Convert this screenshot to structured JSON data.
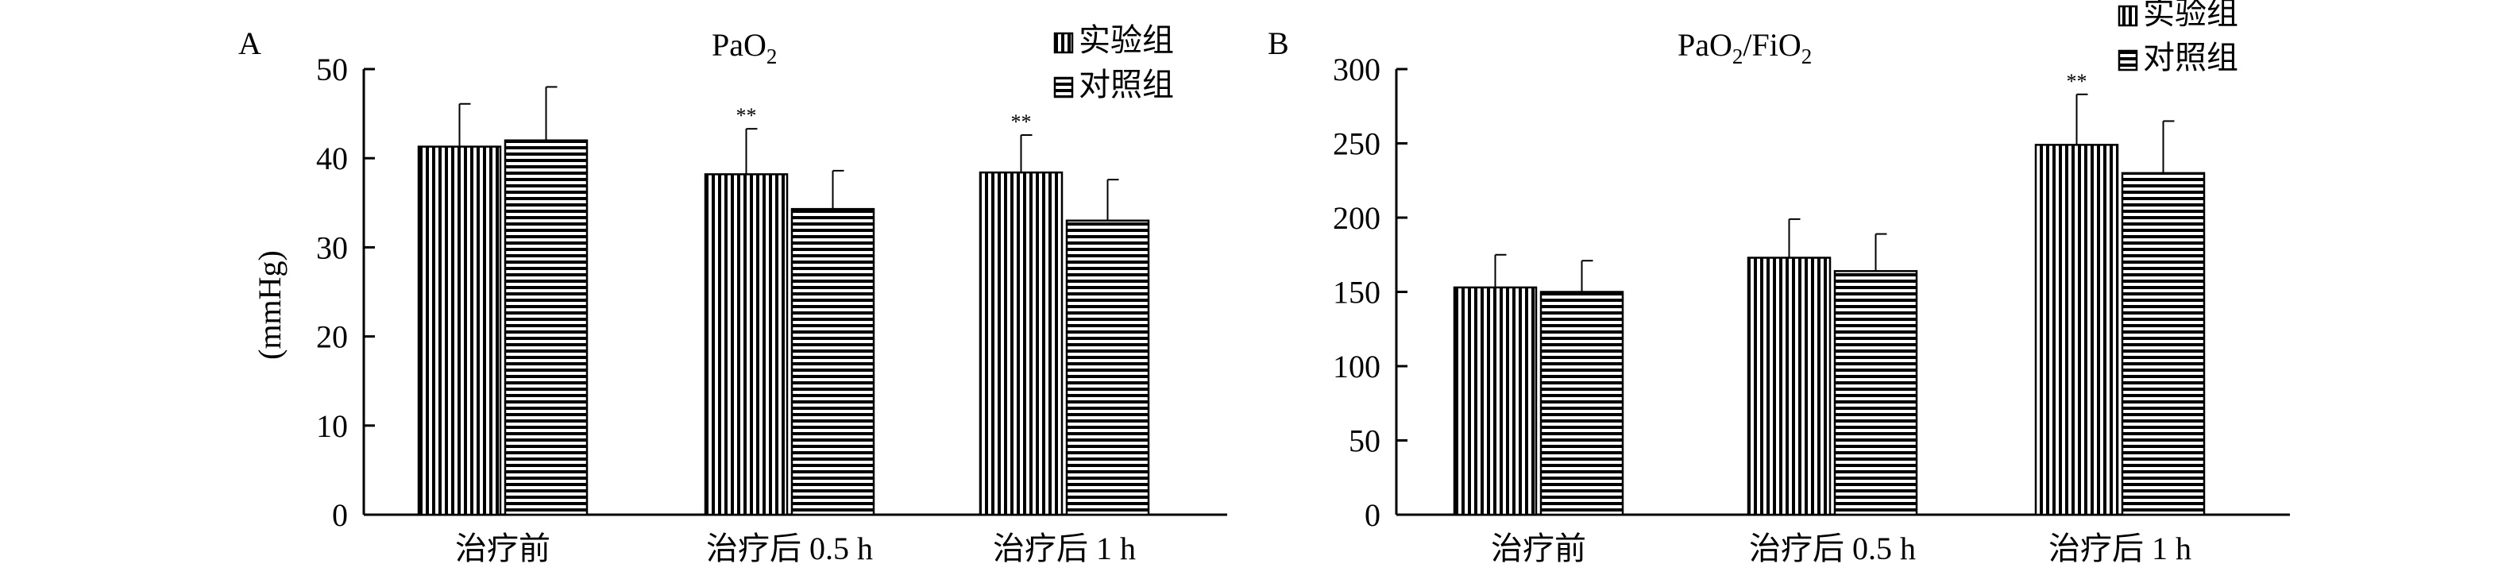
{
  "charts": [
    {
      "panel_label": "A",
      "title_base": "PaO",
      "title_sub": "2",
      "title_tail": "",
      "title_sub2": "",
      "ylabel": "(mmHg)"
    },
    {
      "panel_label": "B",
      "title_base": "PaO",
      "title_sub": "2",
      "title_tail": "/FiO",
      "title_sub2": "2",
      "ylabel": ""
    }
  ],
  "chart_data": [
    {
      "type": "bar",
      "title": "PaO2",
      "ylabel": "(mmHg)",
      "xlabel": "",
      "categories": [
        "治疗前",
        "治疗后 0.5 h",
        "治疗后 1 h"
      ],
      "ylim": [
        0,
        50
      ],
      "yticks": [
        0,
        10,
        20,
        30,
        40,
        50
      ],
      "legend_position": "top-right",
      "series": [
        {
          "name": "实验组",
          "pattern": "vertical-stripes",
          "values": [
            41.3,
            38.2,
            38.4
          ],
          "errors": [
            4.8,
            5.1,
            4.2
          ],
          "annotations": [
            "",
            "**",
            "**"
          ]
        },
        {
          "name": "对照组",
          "pattern": "horizontal-stripes",
          "values": [
            42.0,
            34.3,
            33.0
          ],
          "errors": [
            6.0,
            4.3,
            4.6
          ],
          "annotations": [
            "",
            "",
            ""
          ]
        }
      ]
    },
    {
      "type": "bar",
      "title": "PaO2/FiO2",
      "ylabel": "",
      "xlabel": "",
      "categories": [
        "治疗前",
        "治疗后 0.5 h",
        "治疗后 1 h"
      ],
      "ylim": [
        0,
        300
      ],
      "yticks": [
        0,
        50,
        100,
        150,
        200,
        250,
        300
      ],
      "legend_position": "top-right",
      "series": [
        {
          "name": "实验组",
          "pattern": "vertical-stripes",
          "values": [
            153,
            173,
            249
          ],
          "errors": [
            22,
            26,
            34
          ],
          "annotations": [
            "",
            "",
            "**"
          ]
        },
        {
          "name": "对照组",
          "pattern": "horizontal-stripes",
          "values": [
            150,
            164,
            230
          ],
          "errors": [
            21,
            25,
            35
          ],
          "annotations": [
            "",
            "",
            ""
          ]
        }
      ]
    }
  ]
}
